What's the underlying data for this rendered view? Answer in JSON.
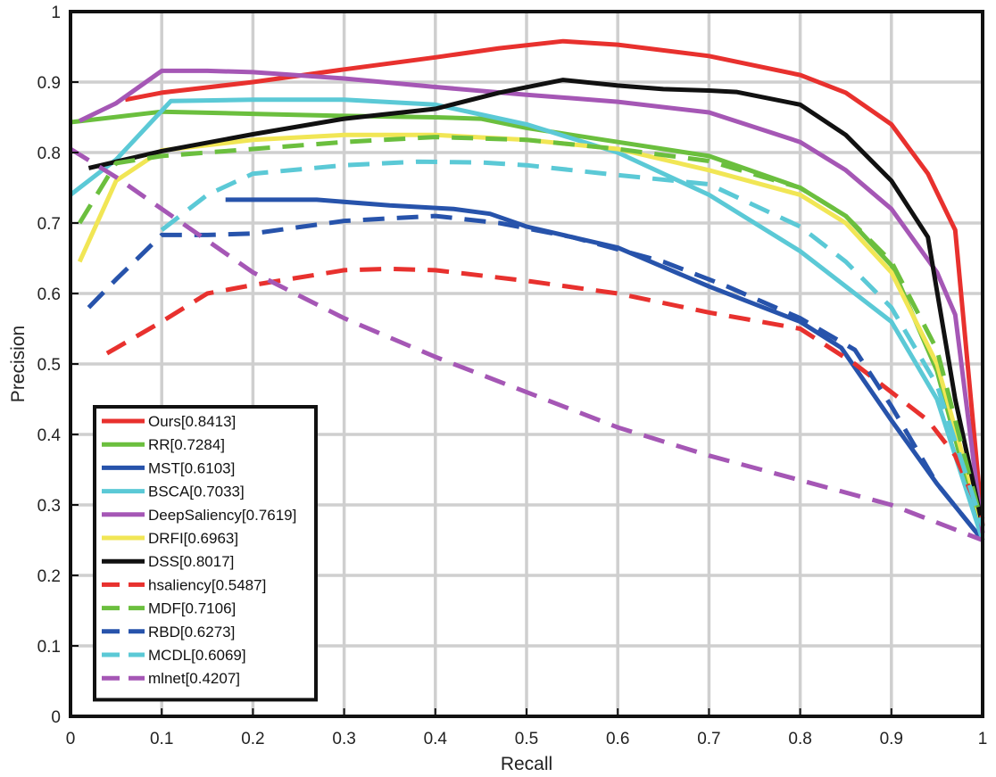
{
  "chart_data": {
    "type": "line",
    "title": "",
    "xlabel": "Recall",
    "ylabel": "Precision",
    "xlim": [
      0,
      1
    ],
    "ylim": [
      0,
      1
    ],
    "xticks": [
      0,
      0.1,
      0.2,
      0.3,
      0.4,
      0.5,
      0.6,
      0.7,
      0.8,
      0.9,
      1
    ],
    "xtick_labels": [
      "0",
      "0.1",
      "0.2",
      "0.3",
      "0.4",
      "0.5",
      "0.6",
      "0.7",
      "0.8",
      "0.9",
      "1"
    ],
    "yticks": [
      0,
      0.1,
      0.2,
      0.3,
      0.4,
      0.5,
      0.6,
      0.7,
      0.8,
      0.9,
      1
    ],
    "ytick_labels": [
      "0",
      "0.1",
      "0.2",
      "0.3",
      "0.4",
      "0.5",
      "0.6",
      "0.7",
      "0.8",
      "0.9",
      "1"
    ],
    "grid": true,
    "legend_position": "bottom-left",
    "series": [
      {
        "name": "Ours[0.8413]",
        "color": "#e8312e",
        "dash": false,
        "x": [
          0.06,
          0.1,
          0.2,
          0.3,
          0.4,
          0.47,
          0.54,
          0.6,
          0.7,
          0.8,
          0.85,
          0.9,
          0.94,
          0.97,
          1.0
        ],
        "y": [
          0.875,
          0.885,
          0.9,
          0.918,
          0.935,
          0.948,
          0.958,
          0.953,
          0.937,
          0.91,
          0.885,
          0.84,
          0.77,
          0.69,
          0.27
        ]
      },
      {
        "name": "RR[0.7284]",
        "color": "#6bbf3e",
        "dash": false,
        "x": [
          0.0,
          0.1,
          0.2,
          0.3,
          0.4,
          0.45,
          0.5,
          0.6,
          0.7,
          0.8,
          0.85,
          0.9,
          0.95,
          1.0
        ],
        "y": [
          0.843,
          0.858,
          0.855,
          0.852,
          0.85,
          0.848,
          0.835,
          0.815,
          0.795,
          0.75,
          0.71,
          0.64,
          0.49,
          0.25
        ]
      },
      {
        "name": "MST[0.6103]",
        "color": "#2753ab",
        "dash": false,
        "x": [
          0.17,
          0.27,
          0.35,
          0.42,
          0.46,
          0.5,
          0.6,
          0.7,
          0.8,
          0.845,
          0.9,
          0.95,
          1.0
        ],
        "y": [
          0.733,
          0.733,
          0.725,
          0.72,
          0.713,
          0.695,
          0.665,
          0.61,
          0.56,
          0.523,
          0.42,
          0.33,
          0.25
        ]
      },
      {
        "name": "BSCA[0.7033]",
        "color": "#5bc9d6",
        "dash": false,
        "x": [
          0.0,
          0.05,
          0.11,
          0.2,
          0.3,
          0.4,
          0.5,
          0.6,
          0.7,
          0.8,
          0.9,
          0.95,
          1.0
        ],
        "y": [
          0.74,
          0.79,
          0.873,
          0.875,
          0.875,
          0.868,
          0.84,
          0.8,
          0.74,
          0.66,
          0.56,
          0.45,
          0.25
        ]
      },
      {
        "name": "DeepSaliency[0.7619]",
        "color": "#a557b5",
        "dash": false,
        "x": [
          0.01,
          0.05,
          0.1,
          0.15,
          0.2,
          0.3,
          0.4,
          0.5,
          0.6,
          0.7,
          0.8,
          0.85,
          0.9,
          0.95,
          0.97,
          1.0
        ],
        "y": [
          0.845,
          0.87,
          0.916,
          0.916,
          0.914,
          0.905,
          0.893,
          0.882,
          0.872,
          0.857,
          0.815,
          0.775,
          0.72,
          0.63,
          0.57,
          0.26
        ]
      },
      {
        "name": "DRFI[0.6963]",
        "color": "#f1e655",
        "dash": false,
        "x": [
          0.01,
          0.05,
          0.1,
          0.2,
          0.3,
          0.4,
          0.5,
          0.6,
          0.7,
          0.8,
          0.85,
          0.9,
          0.95,
          1.0
        ],
        "y": [
          0.645,
          0.76,
          0.803,
          0.818,
          0.825,
          0.825,
          0.818,
          0.805,
          0.775,
          0.74,
          0.7,
          0.63,
          0.5,
          0.27
        ]
      },
      {
        "name": "DSS[0.8017]",
        "color": "#111111",
        "dash": false,
        "x": [
          0.02,
          0.1,
          0.2,
          0.3,
          0.4,
          0.47,
          0.54,
          0.6,
          0.65,
          0.7,
          0.73,
          0.8,
          0.85,
          0.9,
          0.94,
          0.97,
          1.0
        ],
        "y": [
          0.778,
          0.802,
          0.826,
          0.848,
          0.862,
          0.885,
          0.903,
          0.895,
          0.89,
          0.888,
          0.886,
          0.868,
          0.825,
          0.76,
          0.68,
          0.45,
          0.27
        ]
      },
      {
        "name": "hsaliency[0.5487]",
        "color": "#e8312e",
        "dash": true,
        "x": [
          0.04,
          0.1,
          0.15,
          0.2,
          0.3,
          0.35,
          0.4,
          0.5,
          0.6,
          0.7,
          0.8,
          0.86,
          0.9,
          0.94,
          0.97,
          1.0
        ],
        "y": [
          0.515,
          0.56,
          0.6,
          0.612,
          0.633,
          0.635,
          0.633,
          0.618,
          0.6,
          0.573,
          0.55,
          0.5,
          0.46,
          0.42,
          0.37,
          0.28
        ]
      },
      {
        "name": "MDF[0.7106]",
        "color": "#6bbf3e",
        "dash": true,
        "x": [
          0.01,
          0.05,
          0.1,
          0.2,
          0.3,
          0.4,
          0.5,
          0.6,
          0.7,
          0.8,
          0.85,
          0.9,
          0.95,
          1.0
        ],
        "y": [
          0.7,
          0.785,
          0.795,
          0.805,
          0.815,
          0.822,
          0.818,
          0.805,
          0.788,
          0.75,
          0.71,
          0.645,
          0.52,
          0.27
        ]
      },
      {
        "name": "RBD[0.6273]",
        "color": "#2753ab",
        "dash": true,
        "x": [
          0.02,
          0.05,
          0.1,
          0.15,
          0.2,
          0.3,
          0.4,
          0.47,
          0.55,
          0.65,
          0.72,
          0.8,
          0.86,
          0.9,
          0.95,
          1.0
        ],
        "y": [
          0.58,
          0.62,
          0.683,
          0.683,
          0.685,
          0.703,
          0.71,
          0.7,
          0.68,
          0.645,
          0.61,
          0.565,
          0.52,
          0.44,
          0.33,
          0.25
        ]
      },
      {
        "name": "MCDL[0.6069]",
        "color": "#5bc9d6",
        "dash": true,
        "x": [
          0.1,
          0.15,
          0.2,
          0.3,
          0.38,
          0.45,
          0.5,
          0.6,
          0.7,
          0.8,
          0.85,
          0.9,
          0.95,
          1.0
        ],
        "y": [
          0.69,
          0.74,
          0.77,
          0.782,
          0.787,
          0.786,
          0.782,
          0.768,
          0.755,
          0.695,
          0.645,
          0.58,
          0.47,
          0.27
        ]
      },
      {
        "name": "mlnet[0.4207]",
        "color": "#a557b5",
        "dash": true,
        "x": [
          0.0,
          0.05,
          0.1,
          0.2,
          0.3,
          0.4,
          0.5,
          0.6,
          0.7,
          0.8,
          0.9,
          1.0
        ],
        "y": [
          0.805,
          0.765,
          0.72,
          0.63,
          0.565,
          0.51,
          0.46,
          0.41,
          0.37,
          0.335,
          0.3,
          0.25
        ]
      }
    ]
  }
}
